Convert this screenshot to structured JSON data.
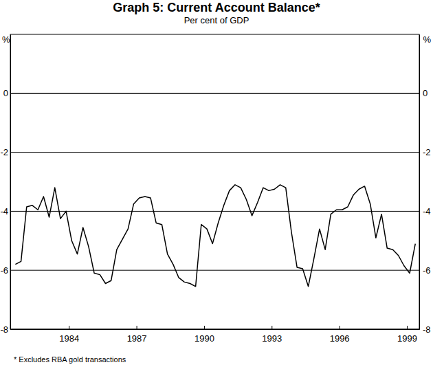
{
  "chart_data": {
    "type": "line",
    "title": "Graph 5: Current Account Balance*",
    "subtitle": "Per cent of GDP",
    "y_label": "%",
    "footnote": "* Excludes RBA gold transactions",
    "color": "#000000",
    "grid": true,
    "xlim": [
      1981.4,
      1999.55
    ],
    "xticks": [
      1984,
      1987,
      1990,
      1993,
      1996,
      1999
    ],
    "ylim": [
      -8,
      2
    ],
    "yticks": [
      -8,
      -6,
      -4,
      -2,
      0
    ],
    "x": [
      1981.625,
      1981.875,
      1982.125,
      1982.375,
      1982.625,
      1982.875,
      1983.125,
      1983.375,
      1983.625,
      1983.875,
      1984.125,
      1984.375,
      1984.625,
      1984.875,
      1985.125,
      1985.375,
      1985.625,
      1985.875,
      1986.125,
      1986.375,
      1986.625,
      1986.875,
      1987.125,
      1987.375,
      1987.625,
      1987.875,
      1988.125,
      1988.375,
      1988.625,
      1988.875,
      1989.125,
      1989.375,
      1989.625,
      1989.875,
      1990.125,
      1990.375,
      1990.625,
      1990.875,
      1991.125,
      1991.375,
      1991.625,
      1991.875,
      1992.125,
      1992.375,
      1992.625,
      1992.875,
      1993.125,
      1993.375,
      1993.625,
      1993.875,
      1994.125,
      1994.375,
      1994.625,
      1994.875,
      1995.125,
      1995.375,
      1995.625,
      1995.875,
      1996.125,
      1996.375,
      1996.625,
      1996.875,
      1997.125,
      1997.375,
      1997.625,
      1997.875,
      1998.125,
      1998.375,
      1998.625,
      1998.875,
      1999.125,
      1999.375
    ],
    "values": [
      -5.8,
      -5.7,
      -3.85,
      -3.8,
      -3.95,
      -3.5,
      -4.2,
      -3.2,
      -4.25,
      -4.0,
      -5.0,
      -5.45,
      -4.55,
      -5.2,
      -6.1,
      -6.15,
      -6.45,
      -6.35,
      -5.3,
      -4.95,
      -4.6,
      -3.75,
      -3.55,
      -3.5,
      -3.55,
      -4.4,
      -4.45,
      -5.45,
      -5.8,
      -6.25,
      -6.4,
      -6.45,
      -6.55,
      -4.45,
      -4.6,
      -5.1,
      -4.4,
      -3.8,
      -3.3,
      -3.1,
      -3.2,
      -3.6,
      -4.15,
      -3.7,
      -3.2,
      -3.3,
      -3.25,
      -3.1,
      -3.2,
      -4.7,
      -5.9,
      -5.95,
      -6.55,
      -5.6,
      -4.6,
      -5.3,
      -4.1,
      -3.95,
      -3.95,
      -3.85,
      -3.45,
      -3.25,
      -3.15,
      -3.75,
      -4.9,
      -4.1,
      -5.25,
      -5.3,
      -5.5,
      -5.85,
      -6.1,
      -5.1
    ]
  }
}
